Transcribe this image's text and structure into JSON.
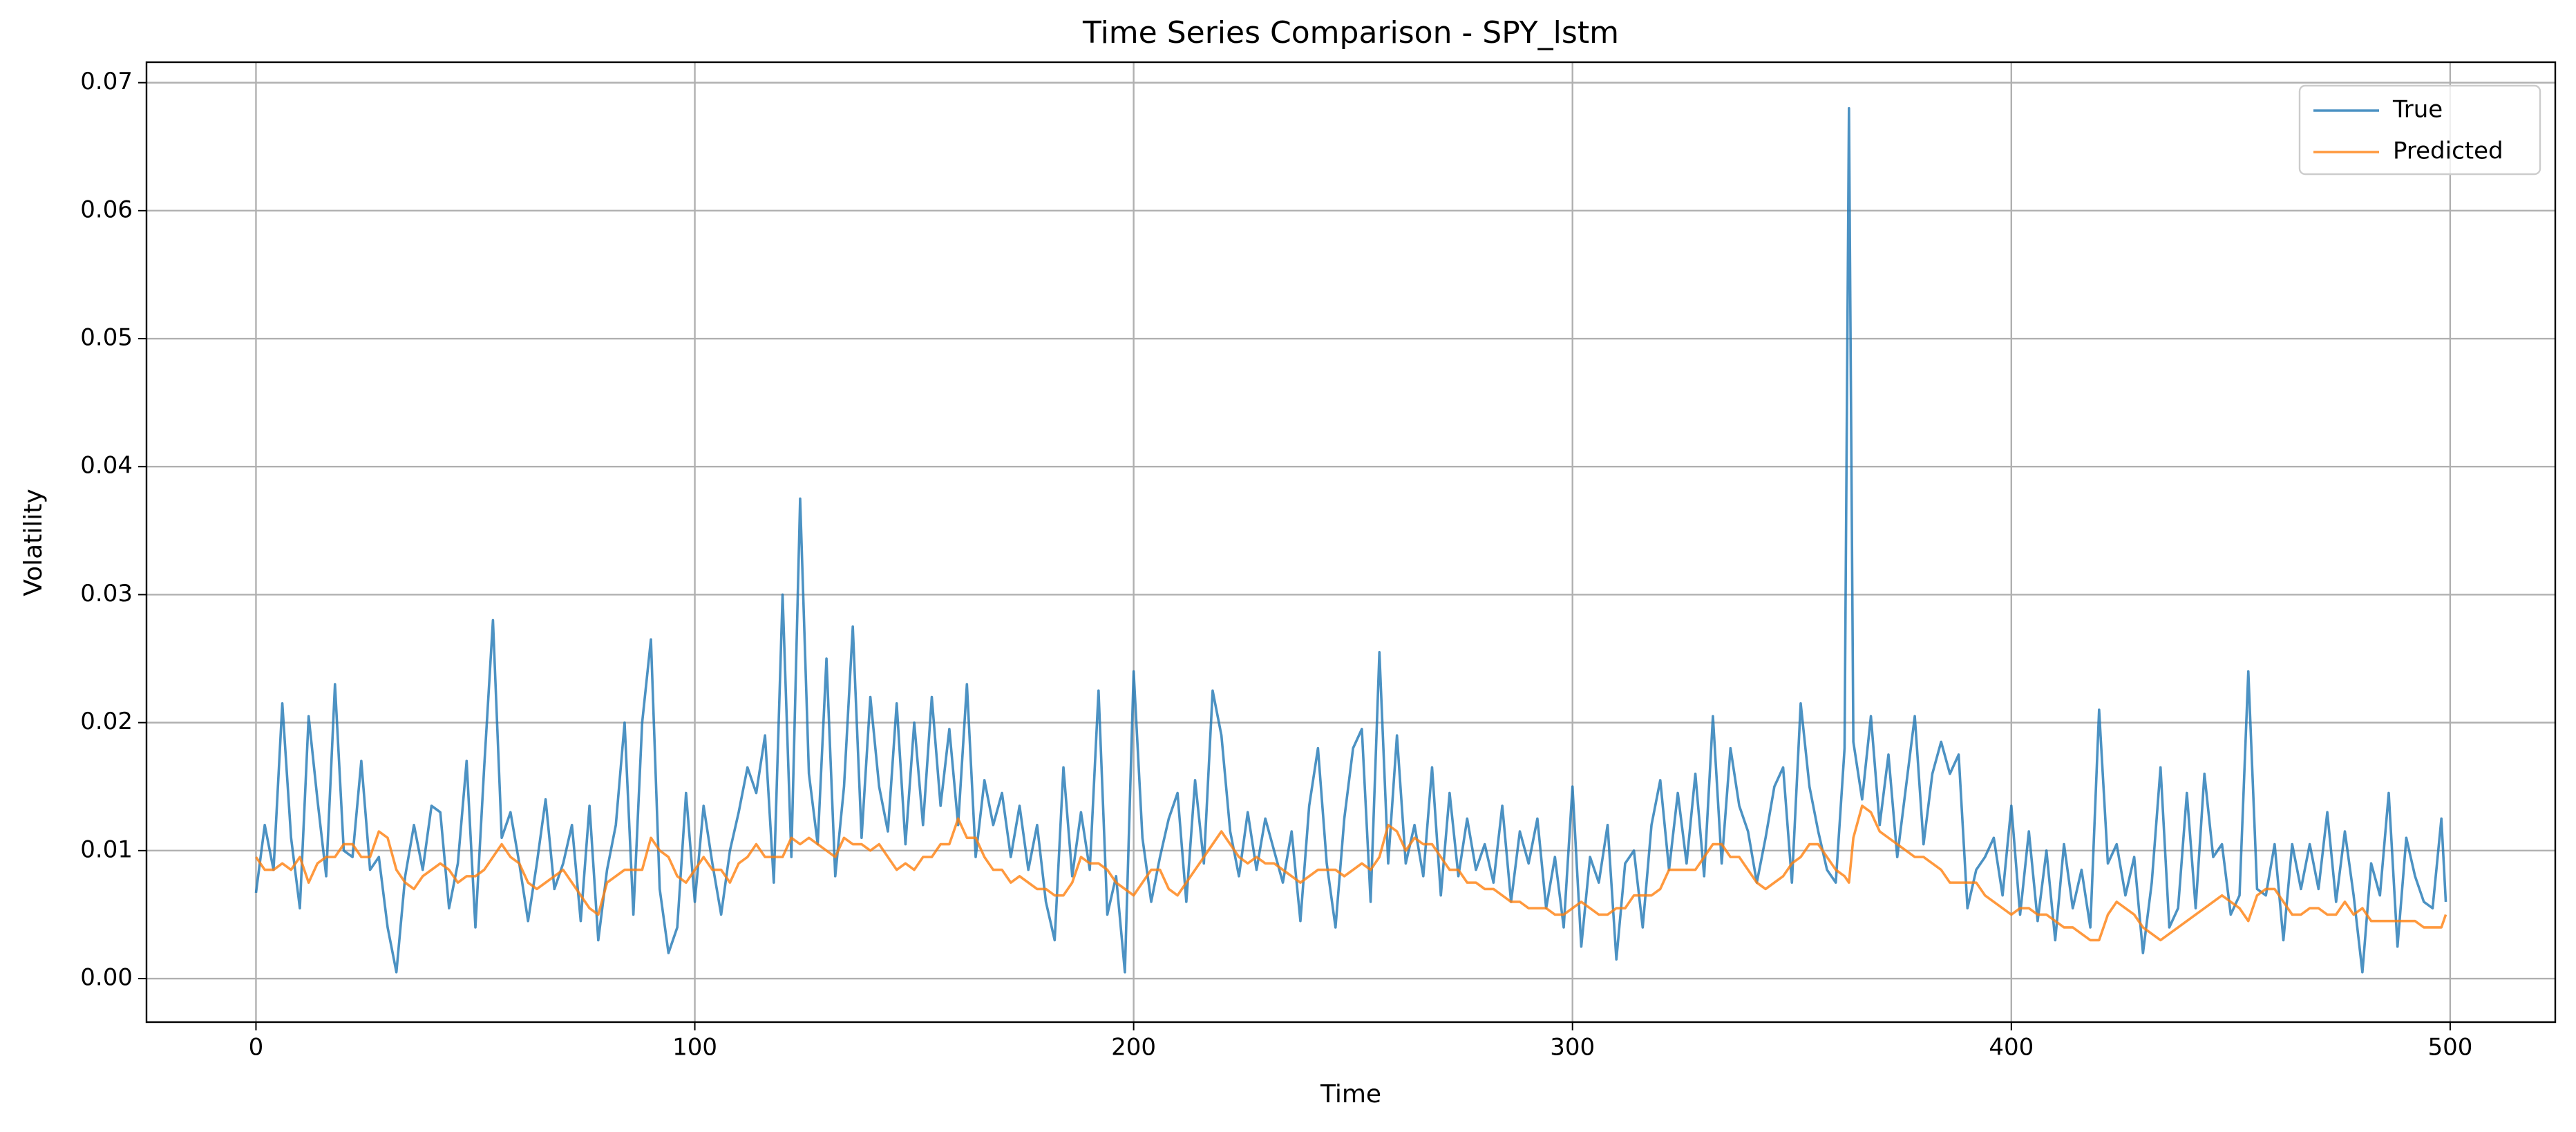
{
  "chart_data": {
    "type": "line",
    "title": "Time Series Comparison - SPY_lstm",
    "xlabel": "Time",
    "ylabel": "Volatility",
    "x": [
      0,
      2,
      4,
      6,
      8,
      10,
      12,
      14,
      16,
      18,
      20,
      22,
      24,
      26,
      28,
      30,
      32,
      34,
      36,
      38,
      40,
      42,
      44,
      46,
      48,
      50,
      52,
      54,
      56,
      58,
      60,
      62,
      64,
      66,
      68,
      70,
      72,
      74,
      76,
      78,
      80,
      82,
      84,
      86,
      88,
      90,
      92,
      94,
      96,
      98,
      100,
      102,
      104,
      106,
      108,
      110,
      112,
      114,
      116,
      118,
      120,
      122,
      124,
      126,
      128,
      130,
      132,
      134,
      136,
      138,
      140,
      142,
      144,
      146,
      148,
      150,
      152,
      154,
      156,
      158,
      160,
      162,
      164,
      166,
      168,
      170,
      172,
      174,
      176,
      178,
      180,
      182,
      184,
      186,
      188,
      190,
      192,
      194,
      196,
      198,
      200,
      202,
      204,
      206,
      208,
      210,
      212,
      214,
      216,
      218,
      220,
      222,
      224,
      226,
      228,
      230,
      232,
      234,
      236,
      238,
      240,
      242,
      244,
      246,
      248,
      250,
      252,
      254,
      256,
      258,
      260,
      262,
      264,
      266,
      268,
      270,
      272,
      274,
      276,
      278,
      280,
      282,
      284,
      286,
      288,
      290,
      292,
      294,
      296,
      298,
      300,
      302,
      304,
      306,
      308,
      310,
      312,
      314,
      316,
      318,
      320,
      322,
      324,
      326,
      328,
      330,
      332,
      334,
      336,
      338,
      340,
      342,
      344,
      346,
      348,
      350,
      352,
      354,
      356,
      358,
      360,
      362,
      363,
      364,
      366,
      368,
      370,
      372,
      374,
      376,
      378,
      380,
      382,
      384,
      386,
      388,
      390,
      392,
      394,
      396,
      398,
      400,
      402,
      404,
      406,
      408,
      410,
      412,
      414,
      416,
      418,
      420,
      422,
      424,
      426,
      428,
      430,
      432,
      434,
      436,
      438,
      440,
      442,
      444,
      446,
      448,
      450,
      452,
      454,
      456,
      458,
      460,
      462,
      464,
      466,
      468,
      470,
      472,
      474,
      476,
      478,
      480,
      482,
      484,
      486,
      488,
      490,
      492,
      494,
      496,
      498,
      499
    ],
    "series": [
      {
        "name": "True",
        "color": "#1f77b4",
        "values": [
          0.0067,
          0.012,
          0.0085,
          0.0215,
          0.011,
          0.0055,
          0.0205,
          0.014,
          0.008,
          0.023,
          0.01,
          0.0095,
          0.017,
          0.0085,
          0.0095,
          0.004,
          0.0005,
          0.008,
          0.012,
          0.0085,
          0.0135,
          0.013,
          0.0055,
          0.009,
          0.017,
          0.004,
          0.0165,
          0.028,
          0.011,
          0.013,
          0.009,
          0.0045,
          0.009,
          0.014,
          0.007,
          0.009,
          0.012,
          0.0045,
          0.0135,
          0.003,
          0.0085,
          0.012,
          0.02,
          0.005,
          0.02,
          0.0265,
          0.007,
          0.002,
          0.004,
          0.0145,
          0.006,
          0.0135,
          0.009,
          0.005,
          0.01,
          0.013,
          0.0165,
          0.0145,
          0.019,
          0.0075,
          0.03,
          0.0095,
          0.0375,
          0.016,
          0.0105,
          0.025,
          0.008,
          0.015,
          0.0275,
          0.011,
          0.022,
          0.015,
          0.0115,
          0.0215,
          0.0105,
          0.02,
          0.012,
          0.022,
          0.0135,
          0.0195,
          0.012,
          0.023,
          0.0095,
          0.0155,
          0.012,
          0.0145,
          0.0095,
          0.0135,
          0.0085,
          0.012,
          0.006,
          0.003,
          0.0165,
          0.008,
          0.013,
          0.0085,
          0.0225,
          0.005,
          0.008,
          0.0005,
          0.024,
          0.011,
          0.006,
          0.0095,
          0.0125,
          0.0145,
          0.006,
          0.0155,
          0.009,
          0.0225,
          0.019,
          0.0115,
          0.008,
          0.013,
          0.0085,
          0.0125,
          0.01,
          0.0075,
          0.0115,
          0.0045,
          0.0135,
          0.018,
          0.009,
          0.004,
          0.0125,
          0.018,
          0.0195,
          0.006,
          0.0255,
          0.009,
          0.019,
          0.009,
          0.012,
          0.008,
          0.0165,
          0.0065,
          0.0145,
          0.008,
          0.0125,
          0.0085,
          0.0105,
          0.0075,
          0.0135,
          0.006,
          0.0115,
          0.009,
          0.0125,
          0.0055,
          0.0095,
          0.004,
          0.015,
          0.0025,
          0.0095,
          0.0075,
          0.012,
          0.0015,
          0.009,
          0.01,
          0.004,
          0.012,
          0.0155,
          0.0085,
          0.0145,
          0.009,
          0.016,
          0.008,
          0.0205,
          0.009,
          0.018,
          0.0135,
          0.0115,
          0.0075,
          0.011,
          0.015,
          0.0165,
          0.0075,
          0.0215,
          0.015,
          0.0115,
          0.0085,
          0.0075,
          0.018,
          0.068,
          0.0185,
          0.014,
          0.0205,
          0.012,
          0.0175,
          0.0095,
          0.015,
          0.0205,
          0.0105,
          0.016,
          0.0185,
          0.016,
          0.0175,
          0.0055,
          0.0085,
          0.0095,
          0.011,
          0.0065,
          0.0135,
          0.005,
          0.0115,
          0.0045,
          0.01,
          0.003,
          0.0105,
          0.0055,
          0.0085,
          0.004,
          0.021,
          0.009,
          0.0105,
          0.0065,
          0.0095,
          0.002,
          0.0075,
          0.0165,
          0.004,
          0.0055,
          0.0145,
          0.0055,
          0.016,
          0.0095,
          0.0105,
          0.005,
          0.0065,
          0.024,
          0.007,
          0.0065,
          0.0105,
          0.003,
          0.0105,
          0.007,
          0.0105,
          0.007,
          0.013,
          0.006,
          0.0115,
          0.0065,
          0.0005,
          0.009,
          0.0065,
          0.0145,
          0.0025,
          0.011,
          0.008,
          0.006,
          0.0055,
          0.0125,
          0.006
        ]
      },
      {
        "name": "Predicted",
        "color": "#ff7f0e",
        "values": [
          0.0095,
          0.0085,
          0.0085,
          0.009,
          0.0085,
          0.0095,
          0.0075,
          0.009,
          0.0095,
          0.0095,
          0.0105,
          0.0105,
          0.0095,
          0.0095,
          0.0115,
          0.011,
          0.0085,
          0.0075,
          0.007,
          0.008,
          0.0085,
          0.009,
          0.0085,
          0.0075,
          0.008,
          0.008,
          0.0085,
          0.0095,
          0.0105,
          0.0095,
          0.009,
          0.0075,
          0.007,
          0.0075,
          0.008,
          0.0085,
          0.0075,
          0.0065,
          0.0055,
          0.005,
          0.0075,
          0.008,
          0.0085,
          0.0085,
          0.0085,
          0.011,
          0.01,
          0.0095,
          0.008,
          0.0075,
          0.0085,
          0.0095,
          0.0085,
          0.0085,
          0.0075,
          0.009,
          0.0095,
          0.0105,
          0.0095,
          0.0095,
          0.0095,
          0.011,
          0.0105,
          0.011,
          0.0105,
          0.01,
          0.0095,
          0.011,
          0.0105,
          0.0105,
          0.01,
          0.0105,
          0.0095,
          0.0085,
          0.009,
          0.0085,
          0.0095,
          0.0095,
          0.0105,
          0.0105,
          0.0125,
          0.011,
          0.011,
          0.0095,
          0.0085,
          0.0085,
          0.0075,
          0.008,
          0.0075,
          0.007,
          0.007,
          0.0065,
          0.0065,
          0.0075,
          0.0095,
          0.009,
          0.009,
          0.0085,
          0.0075,
          0.007,
          0.0065,
          0.0075,
          0.0085,
          0.0085,
          0.007,
          0.0065,
          0.0075,
          0.0085,
          0.0095,
          0.0105,
          0.0115,
          0.0105,
          0.0095,
          0.009,
          0.0095,
          0.009,
          0.009,
          0.0085,
          0.008,
          0.0075,
          0.008,
          0.0085,
          0.0085,
          0.0085,
          0.008,
          0.0085,
          0.009,
          0.0085,
          0.0095,
          0.012,
          0.0115,
          0.01,
          0.011,
          0.0105,
          0.0105,
          0.0095,
          0.0085,
          0.0085,
          0.0075,
          0.0075,
          0.007,
          0.007,
          0.0065,
          0.006,
          0.006,
          0.0055,
          0.0055,
          0.0055,
          0.005,
          0.005,
          0.0055,
          0.006,
          0.0055,
          0.005,
          0.005,
          0.0055,
          0.0055,
          0.0065,
          0.0065,
          0.0065,
          0.007,
          0.0085,
          0.0085,
          0.0085,
          0.0085,
          0.0095,
          0.0105,
          0.0105,
          0.0095,
          0.0095,
          0.0085,
          0.0075,
          0.007,
          0.0075,
          0.008,
          0.009,
          0.0095,
          0.0105,
          0.0105,
          0.0095,
          0.0085,
          0.008,
          0.0075,
          0.011,
          0.0135,
          0.013,
          0.0115,
          0.011,
          0.0105,
          0.01,
          0.0095,
          0.0095,
          0.009,
          0.0085,
          0.0075,
          0.0075,
          0.0075,
          0.0075,
          0.0065,
          0.006,
          0.0055,
          0.005,
          0.0055,
          0.0055,
          0.005,
          0.005,
          0.0045,
          0.004,
          0.004,
          0.0035,
          0.003,
          0.003,
          0.005,
          0.006,
          0.0055,
          0.005,
          0.004,
          0.0035,
          0.003,
          0.0035,
          0.004,
          0.0045,
          0.005,
          0.0055,
          0.006,
          0.0065,
          0.006,
          0.0055,
          0.0045,
          0.0065,
          0.007,
          0.007,
          0.006,
          0.005,
          0.005,
          0.0055,
          0.0055,
          0.005,
          0.005,
          0.006,
          0.005,
          0.0055,
          0.0045,
          0.0045,
          0.0045,
          0.0045,
          0.0045,
          0.0045,
          0.004,
          0.004,
          0.004,
          0.005
        ]
      }
    ],
    "xlim": [
      -24.95,
      523.95
    ],
    "xticks": [
      0,
      100,
      200,
      300,
      400,
      500
    ],
    "ylim": [
      -0.0034,
      0.0716
    ],
    "yticks": [
      {
        "value": 0,
        "label": "0.00"
      },
      {
        "value": 0.01,
        "label": "0.01"
      },
      {
        "value": 0.02,
        "label": "0.02"
      },
      {
        "value": 0.03,
        "label": "0.03"
      },
      {
        "value": 0.04,
        "label": "0.04"
      },
      {
        "value": 0.05,
        "label": "0.05"
      },
      {
        "value": 0.06,
        "label": "0.06"
      },
      {
        "value": 0.07,
        "label": "0.07"
      }
    ],
    "grid": true,
    "legend": "upper right"
  }
}
